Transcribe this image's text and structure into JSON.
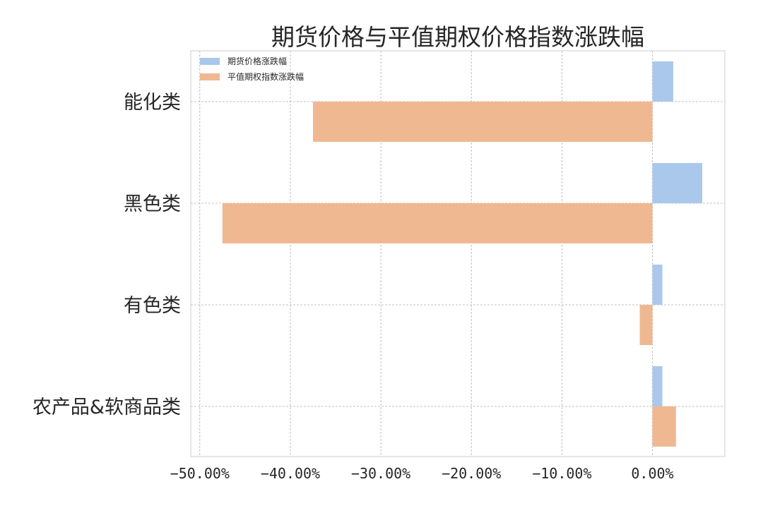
{
  "chart_data": {
    "type": "bar",
    "orientation": "horizontal",
    "title": "期货价格与平值期权价格指数涨跌幅",
    "categories": [
      "能化类",
      "黑色类",
      "有色类",
      "农产品&软商品类"
    ],
    "series": [
      {
        "name": "期货价格涨跌幅",
        "values": [
          2.3,
          5.5,
          1.1,
          1.1
        ],
        "color": "#a9c8ec"
      },
      {
        "name": "平值期权指数涨跌幅",
        "values": [
          -37.5,
          -47.5,
          -1.4,
          2.6
        ],
        "color": "#f0b891"
      }
    ],
    "xticks": [
      -50,
      -40,
      -30,
      -20,
      -10,
      0
    ],
    "xtick_labels": [
      "−50.00%",
      "−40.00%",
      "−30.00%",
      "−20.00%",
      "−10.00%",
      "0.00%"
    ],
    "xlim": [
      -51,
      8
    ],
    "grid": true,
    "legend": "top-left"
  }
}
